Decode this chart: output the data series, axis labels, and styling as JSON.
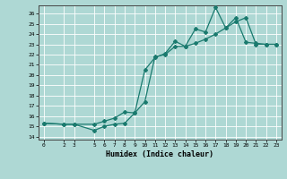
{
  "title": "",
  "xlabel": "Humidex (Indice chaleur)",
  "bg_color": "#aed8d4",
  "grid_color": "#ffffff",
  "line_color": "#1a7a6e",
  "xlim": [
    -0.5,
    23.5
  ],
  "ylim": [
    13.7,
    26.8
  ],
  "xticks": [
    0,
    2,
    3,
    5,
    6,
    7,
    8,
    9,
    10,
    11,
    12,
    13,
    14,
    15,
    16,
    17,
    18,
    19,
    20,
    21,
    22,
    23
  ],
  "yticks": [
    14,
    15,
    16,
    17,
    18,
    19,
    20,
    21,
    22,
    23,
    24,
    25,
    26
  ],
  "series1_x": [
    0,
    2,
    3,
    5,
    6,
    7,
    8,
    9,
    10,
    11,
    12,
    13,
    14,
    15,
    16,
    17,
    18,
    19,
    20,
    21,
    22,
    23
  ],
  "series1_y": [
    15.3,
    15.2,
    15.2,
    14.6,
    15.0,
    15.2,
    15.3,
    16.3,
    20.5,
    21.7,
    22.1,
    23.3,
    22.8,
    24.5,
    24.2,
    26.6,
    24.6,
    25.6,
    23.2,
    23.1,
    23.0,
    23.0
  ],
  "series2_x": [
    0,
    2,
    3,
    5,
    6,
    7,
    8,
    9,
    10,
    11,
    12,
    13,
    14,
    15,
    16,
    17,
    18,
    19,
    20,
    21,
    22,
    23
  ],
  "series2_y": [
    15.3,
    15.2,
    15.2,
    15.2,
    15.5,
    15.8,
    16.4,
    16.3,
    17.4,
    21.8,
    22.0,
    22.8,
    22.8,
    23.1,
    23.5,
    24.0,
    24.6,
    25.2,
    25.6,
    23.0,
    23.0,
    23.0
  ]
}
